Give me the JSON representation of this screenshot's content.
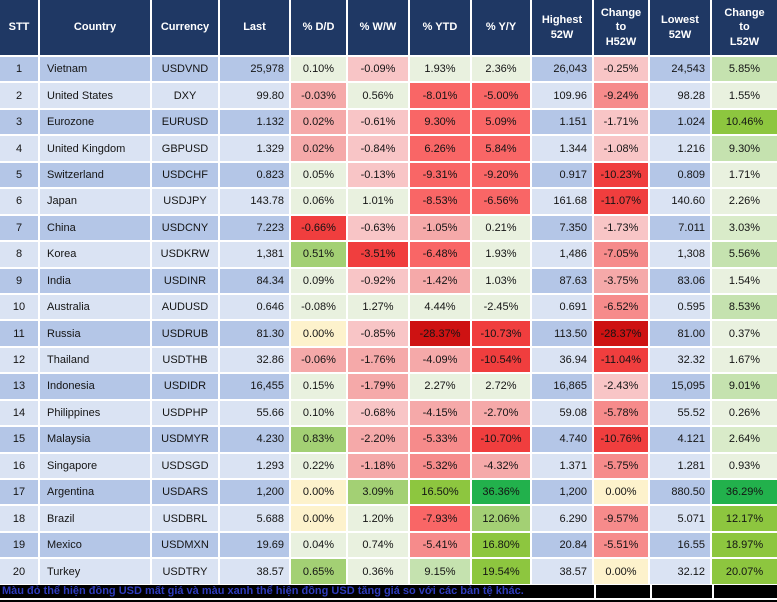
{
  "palette": {
    "G0": "#E9F1DF",
    "G1": "#D9EBC9",
    "G2": "#C5E2AF",
    "G3": "#A3D074",
    "G4": "#8DC63F",
    "G5": "#22B14C",
    "Y0": "#FDF2CC",
    "P1": "#F8C5C6",
    "P2": "#F5A9A9",
    "P3": "#F68B8B",
    "R1": "#F96666",
    "R2": "#F03E3E",
    "R3": "#CE1212"
  },
  "colors": {
    "header_bg": "#1F3864",
    "header_text": "#FFFFFF",
    "row_odd_bg": "#B4C6E7",
    "row_even_bg": "#DAE3F3",
    "footer_bg": "#000000",
    "footer_text": "#2F3CBE",
    "gridline": "#FFFFFF"
  },
  "footer": {
    "note": "Màu đỏ thể hiện đồng USD mất giá và màu xanh thể hiện đồng USD tăng giá so với các bản tệ khác."
  },
  "chart_data": {
    "type": "table",
    "columns": [
      {
        "key": "stt",
        "label": "STT"
      },
      {
        "key": "country",
        "label": "Country"
      },
      {
        "key": "currency",
        "label": "Currency"
      },
      {
        "key": "last",
        "label": "Last"
      },
      {
        "key": "dd",
        "label": "% D/D"
      },
      {
        "key": "ww",
        "label": "% W/W"
      },
      {
        "key": "ytd",
        "label": "% YTD"
      },
      {
        "key": "yy",
        "label": "% Y/Y"
      },
      {
        "key": "high",
        "label": "Highest\n52W"
      },
      {
        "key": "chg_h",
        "label": "Change\nto\nH52W"
      },
      {
        "key": "low",
        "label": "Lowest\n52W"
      },
      {
        "key": "chg_l",
        "label": "Change\nto\nL52W"
      }
    ],
    "rows": [
      {
        "stt": "1",
        "country": "Vietnam",
        "currency": "USDVND",
        "last": "25,978",
        "dd": [
          "0.10%",
          "G0"
        ],
        "ww": [
          "-0.09%",
          "P1"
        ],
        "ytd": [
          "1.93%",
          "G0"
        ],
        "yy": [
          "2.36%",
          "G0"
        ],
        "high": "26,043",
        "chg_h": [
          "-0.25%",
          "P1"
        ],
        "low": "24,543",
        "chg_l": [
          "5.85%",
          "G2"
        ]
      },
      {
        "stt": "2",
        "country": "United States",
        "currency": "DXY",
        "last": "99.80",
        "dd": [
          "-0.03%",
          "P2"
        ],
        "ww": [
          "0.56%",
          "G0"
        ],
        "ytd": [
          "-8.01%",
          "R1"
        ],
        "yy": [
          "-5.00%",
          "R1"
        ],
        "high": "109.96",
        "chg_h": [
          "-9.24%",
          "P3"
        ],
        "low": "98.28",
        "chg_l": [
          "1.55%",
          "G0"
        ]
      },
      {
        "stt": "3",
        "country": "Eurozone",
        "currency": "EURUSD",
        "last": "1.132",
        "dd": [
          "0.02%",
          "P2"
        ],
        "ww": [
          "-0.61%",
          "P1"
        ],
        "ytd": [
          "9.30%",
          "R1"
        ],
        "yy": [
          "5.09%",
          "R1"
        ],
        "high": "1.151",
        "chg_h": [
          "-1.71%",
          "P1"
        ],
        "low": "1.024",
        "chg_l": [
          "10.46%",
          "G4"
        ]
      },
      {
        "stt": "4",
        "country": "United Kingdom",
        "currency": "GBPUSD",
        "last": "1.329",
        "dd": [
          "0.02%",
          "P2"
        ],
        "ww": [
          "-0.84%",
          "P1"
        ],
        "ytd": [
          "6.26%",
          "R1"
        ],
        "yy": [
          "5.84%",
          "R1"
        ],
        "high": "1.344",
        "chg_h": [
          "-1.08%",
          "P1"
        ],
        "low": "1.216",
        "chg_l": [
          "9.30%",
          "G2"
        ]
      },
      {
        "stt": "5",
        "country": "Switzerland",
        "currency": "USDCHF",
        "last": "0.823",
        "dd": [
          "0.05%",
          "G0"
        ],
        "ww": [
          "-0.13%",
          "P1"
        ],
        "ytd": [
          "-9.31%",
          "R1"
        ],
        "yy": [
          "-9.20%",
          "R1"
        ],
        "high": "0.917",
        "chg_h": [
          "-10.23%",
          "R2"
        ],
        "low": "0.809",
        "chg_l": [
          "1.71%",
          "G0"
        ]
      },
      {
        "stt": "6",
        "country": "Japan",
        "currency": "USDJPY",
        "last": "143.78",
        "dd": [
          "0.06%",
          "G0"
        ],
        "ww": [
          "1.01%",
          "G0"
        ],
        "ytd": [
          "-8.53%",
          "R1"
        ],
        "yy": [
          "-6.56%",
          "R1"
        ],
        "high": "161.68",
        "chg_h": [
          "-11.07%",
          "R2"
        ],
        "low": "140.60",
        "chg_l": [
          "2.26%",
          "G0"
        ]
      },
      {
        "stt": "7",
        "country": "China",
        "currency": "USDCNY",
        "last": "7.223",
        "dd": [
          "-0.66%",
          "R2"
        ],
        "ww": [
          "-0.63%",
          "P1"
        ],
        "ytd": [
          "-1.05%",
          "P2"
        ],
        "yy": [
          "0.21%",
          "G0"
        ],
        "high": "7.350",
        "chg_h": [
          "-1.73%",
          "P1"
        ],
        "low": "7.011",
        "chg_l": [
          "3.03%",
          "G1"
        ]
      },
      {
        "stt": "8",
        "country": "Korea",
        "currency": "USDKRW",
        "last": "1,381",
        "dd": [
          "0.51%",
          "G3"
        ],
        "ww": [
          "-3.51%",
          "R2"
        ],
        "ytd": [
          "-6.48%",
          "R1"
        ],
        "yy": [
          "1.93%",
          "G0"
        ],
        "high": "1,486",
        "chg_h": [
          "-7.05%",
          "P3"
        ],
        "low": "1,308",
        "chg_l": [
          "5.56%",
          "G2"
        ]
      },
      {
        "stt": "9",
        "country": "India",
        "currency": "USDINR",
        "last": "84.34",
        "dd": [
          "0.09%",
          "G0"
        ],
        "ww": [
          "-0.92%",
          "P1"
        ],
        "ytd": [
          "-1.42%",
          "P2"
        ],
        "yy": [
          "1.03%",
          "G0"
        ],
        "high": "87.63",
        "chg_h": [
          "-3.75%",
          "P2"
        ],
        "low": "83.06",
        "chg_l": [
          "1.54%",
          "G0"
        ]
      },
      {
        "stt": "10",
        "country": "Australia",
        "currency": "AUDUSD",
        "last": "0.646",
        "dd": [
          "-0.08%",
          "G0"
        ],
        "ww": [
          "1.27%",
          "G0"
        ],
        "ytd": [
          "4.44%",
          "G0"
        ],
        "yy": [
          "-2.45%",
          "G0"
        ],
        "high": "0.691",
        "chg_h": [
          "-6.52%",
          "P3"
        ],
        "low": "0.595",
        "chg_l": [
          "8.53%",
          "G2"
        ]
      },
      {
        "stt": "11",
        "country": "Russia",
        "currency": "USDRUB",
        "last": "81.30",
        "dd": [
          "0.00%",
          "Y0"
        ],
        "ww": [
          "-0.85%",
          "P1"
        ],
        "ytd": [
          "-28.37%",
          "R3"
        ],
        "yy": [
          "-10.73%",
          "R2"
        ],
        "high": "113.50",
        "chg_h": [
          "-28.37%",
          "R3"
        ],
        "low": "81.00",
        "chg_l": [
          "0.37%",
          "G0"
        ]
      },
      {
        "stt": "12",
        "country": "Thailand",
        "currency": "USDTHB",
        "last": "32.86",
        "dd": [
          "-0.06%",
          "P2"
        ],
        "ww": [
          "-1.76%",
          "P2"
        ],
        "ytd": [
          "-4.09%",
          "P2"
        ],
        "yy": [
          "-10.54%",
          "R2"
        ],
        "high": "36.94",
        "chg_h": [
          "-11.04%",
          "R2"
        ],
        "low": "32.32",
        "chg_l": [
          "1.67%",
          "G0"
        ]
      },
      {
        "stt": "13",
        "country": "Indonesia",
        "currency": "USDIDR",
        "last": "16,455",
        "dd": [
          "0.15%",
          "G0"
        ],
        "ww": [
          "-1.79%",
          "P2"
        ],
        "ytd": [
          "2.27%",
          "G0"
        ],
        "yy": [
          "2.72%",
          "G0"
        ],
        "high": "16,865",
        "chg_h": [
          "-2.43%",
          "P1"
        ],
        "low": "15,095",
        "chg_l": [
          "9.01%",
          "G2"
        ]
      },
      {
        "stt": "14",
        "country": "Philippines",
        "currency": "USDPHP",
        "last": "55.66",
        "dd": [
          "0.10%",
          "G0"
        ],
        "ww": [
          "-0.68%",
          "P1"
        ],
        "ytd": [
          "-4.15%",
          "P2"
        ],
        "yy": [
          "-2.70%",
          "P2"
        ],
        "high": "59.08",
        "chg_h": [
          "-5.78%",
          "P3"
        ],
        "low": "55.52",
        "chg_l": [
          "0.26%",
          "G0"
        ]
      },
      {
        "stt": "15",
        "country": "Malaysia",
        "currency": "USDMYR",
        "last": "4.230",
        "dd": [
          "0.83%",
          "G3"
        ],
        "ww": [
          "-2.20%",
          "P2"
        ],
        "ytd": [
          "-5.33%",
          "P3"
        ],
        "yy": [
          "-10.70%",
          "R2"
        ],
        "high": "4.740",
        "chg_h": [
          "-10.76%",
          "R2"
        ],
        "low": "4.121",
        "chg_l": [
          "2.64%",
          "G1"
        ]
      },
      {
        "stt": "16",
        "country": "Singapore",
        "currency": "USDSGD",
        "last": "1.293",
        "dd": [
          "0.22%",
          "G0"
        ],
        "ww": [
          "-1.18%",
          "P2"
        ],
        "ytd": [
          "-5.32%",
          "P3"
        ],
        "yy": [
          "-4.32%",
          "P2"
        ],
        "high": "1.371",
        "chg_h": [
          "-5.75%",
          "P3"
        ],
        "low": "1.281",
        "chg_l": [
          "0.93%",
          "G0"
        ]
      },
      {
        "stt": "17",
        "country": "Argentina",
        "currency": "USDARS",
        "last": "1,200",
        "dd": [
          "0.00%",
          "Y0"
        ],
        "ww": [
          "3.09%",
          "G3"
        ],
        "ytd": [
          "16.50%",
          "G4"
        ],
        "yy": [
          "36.36%",
          "G5"
        ],
        "high": "1,200",
        "chg_h": [
          "0.00%",
          "Y0"
        ],
        "low": "880.50",
        "chg_l": [
          "36.29%",
          "G5"
        ]
      },
      {
        "stt": "18",
        "country": "Brazil",
        "currency": "USDBRL",
        "last": "5.688",
        "dd": [
          "0.00%",
          "Y0"
        ],
        "ww": [
          "1.20%",
          "G0"
        ],
        "ytd": [
          "-7.93%",
          "R1"
        ],
        "yy": [
          "12.06%",
          "G3"
        ],
        "high": "6.290",
        "chg_h": [
          "-9.57%",
          "P3"
        ],
        "low": "5.071",
        "chg_l": [
          "12.17%",
          "G4"
        ]
      },
      {
        "stt": "19",
        "country": "Mexico",
        "currency": "USDMXN",
        "last": "19.69",
        "dd": [
          "0.04%",
          "G0"
        ],
        "ww": [
          "0.74%",
          "G0"
        ],
        "ytd": [
          "-5.41%",
          "P3"
        ],
        "yy": [
          "16.80%",
          "G4"
        ],
        "high": "20.84",
        "chg_h": [
          "-5.51%",
          "P3"
        ],
        "low": "16.55",
        "chg_l": [
          "18.97%",
          "G4"
        ]
      },
      {
        "stt": "20",
        "country": "Turkey",
        "currency": "USDTRY",
        "last": "38.57",
        "dd": [
          "0.65%",
          "G3"
        ],
        "ww": [
          "0.36%",
          "G0"
        ],
        "ytd": [
          "9.15%",
          "G2"
        ],
        "yy": [
          "19.54%",
          "G4"
        ],
        "high": "38.57",
        "chg_h": [
          "0.00%",
          "Y0"
        ],
        "low": "32.12",
        "chg_l": [
          "20.07%",
          "G4"
        ]
      }
    ]
  }
}
